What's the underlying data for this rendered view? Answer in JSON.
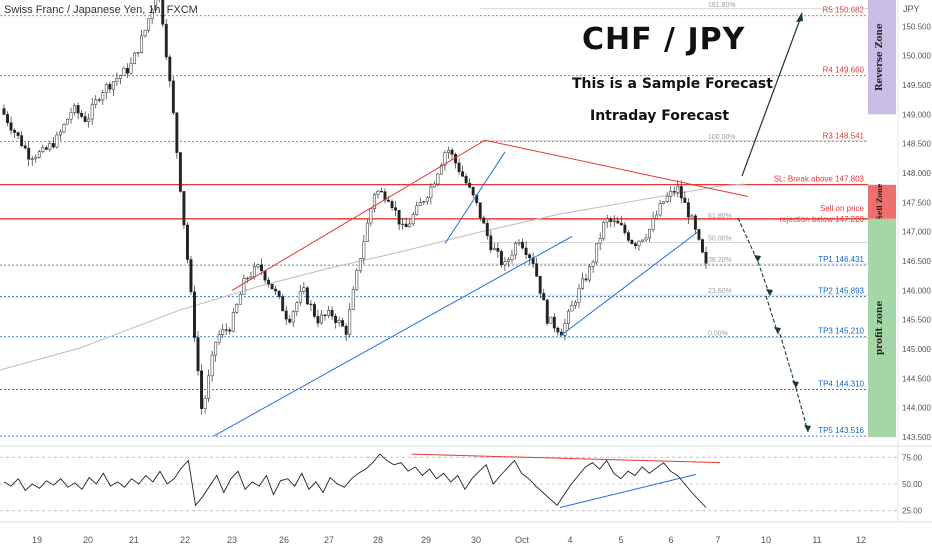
{
  "header": {
    "symbol": "Swiss Franc / Japanese Yen, 1h, FXCM",
    "title": "CHF / JPY",
    "subtitle1": "This is a Sample Forecast",
    "subtitle2": "Intraday Forecast",
    "currency": "JPY"
  },
  "chart_data": {
    "type": "candlestick",
    "symbol": "CHFJPY",
    "timeframe": "1h",
    "ylim": [
      143.45,
      150.95
    ],
    "y_ticks": [
      143.5,
      144.0,
      144.5,
      145.0,
      145.5,
      146.0,
      146.5,
      147.0,
      147.5,
      148.0,
      148.5,
      149.0,
      149.5,
      150.0,
      150.5
    ],
    "x_tick_labels": [
      "19",
      "20",
      "21",
      "22",
      "23",
      "26",
      "27",
      "28",
      "29",
      "30",
      "Oct",
      "4",
      "5",
      "6",
      "7",
      "10",
      "11",
      "12"
    ],
    "price_path": [
      [
        "19",
        149.1
      ],
      [
        "19",
        148.7
      ],
      [
        "19",
        148.3
      ],
      [
        "20",
        148.35
      ],
      [
        "20",
        148.6
      ],
      [
        "21",
        149.1
      ],
      [
        "21",
        148.9
      ],
      [
        "21",
        149.4
      ],
      [
        "22",
        149.6
      ],
      [
        "22",
        149.8
      ],
      [
        "22",
        150.4
      ],
      [
        "22",
        151.2
      ],
      [
        "22",
        149.0
      ],
      [
        "23",
        146.5
      ],
      [
        "23",
        143.9
      ],
      [
        "23",
        145.2
      ],
      [
        "23",
        145.4
      ],
      [
        "26",
        146.2
      ],
      [
        "26",
        146.4
      ],
      [
        "26",
        146.0
      ],
      [
        "27",
        145.5
      ],
      [
        "27",
        146.0
      ],
      [
        "27",
        145.5
      ],
      [
        "28",
        145.6
      ],
      [
        "28",
        145.3
      ],
      [
        "28",
        146.6
      ],
      [
        "29",
        147.7
      ],
      [
        "29",
        147.6
      ],
      [
        "29",
        147.0
      ],
      [
        "30",
        147.4
      ],
      [
        "30",
        147.8
      ],
      [
        "30",
        148.45
      ],
      [
        "30",
        148.0
      ],
      [
        "30",
        147.5
      ],
      [
        "Oct",
        146.8
      ],
      [
        "Oct",
        146.4
      ],
      [
        "Oct",
        146.9
      ],
      [
        "Oct",
        146.5
      ],
      [
        "4",
        145.5
      ],
      [
        "4",
        145.3
      ],
      [
        "4",
        145.9
      ],
      [
        "4",
        146.4
      ],
      [
        "5",
        147.2
      ],
      [
        "5",
        147.1
      ],
      [
        "5",
        146.8
      ],
      [
        "6",
        147.0
      ],
      [
        "6",
        147.5
      ],
      [
        "6",
        147.75
      ],
      [
        "6",
        147.2
      ],
      [
        "6",
        146.4
      ]
    ],
    "levels": [
      {
        "name": "R5",
        "label": "R5 150.682",
        "price": 150.682,
        "color": "#e53935",
        "style": "dotted"
      },
      {
        "name": "R4",
        "label": "R4 149.660",
        "price": 149.66,
        "color": "#e53935",
        "style": "dotted"
      },
      {
        "name": "R3",
        "label": "R3 148.541",
        "price": 148.541,
        "color": "#e53935",
        "style": "dotted"
      },
      {
        "name": "SL",
        "label": "SL: Break above 147.803",
        "price": 147.803,
        "color": "#e53935",
        "style": "solid"
      },
      {
        "name": "Sell",
        "label": "Sell on price rejection below 147.220",
        "price": 147.22,
        "color": "#e53935",
        "style": "solid"
      },
      {
        "name": "TP1",
        "label": "TP1 146.431",
        "price": 146.431,
        "color": "#1565c0",
        "style": "dotted"
      },
      {
        "name": "TP2",
        "label": "TP2 145.893",
        "price": 145.893,
        "color": "#1565c0",
        "style": "dotted"
      },
      {
        "name": "TP3",
        "label": "TP3 145.210",
        "price": 145.21,
        "color": "#1565c0",
        "style": "dotted"
      },
      {
        "name": "TP4",
        "label": "TP4 144.310",
        "price": 144.31,
        "color": "#1565c0",
        "style": "dotted"
      },
      {
        "name": "TP5",
        "label": "TP5 143.516",
        "price": 143.516,
        "color": "#1565c0",
        "style": "dotted"
      }
    ],
    "fibonacci": [
      {
        "label": "161.80%",
        "price": 150.8
      },
      {
        "label": "100.00%",
        "price": 148.55
      },
      {
        "label": "61.80%",
        "price": 147.2
      },
      {
        "label": "50.00%",
        "price": 146.82
      },
      {
        "label": "38.20%",
        "price": 146.45
      },
      {
        "label": "23.60%",
        "price": 145.92
      },
      {
        "label": "0.00%",
        "price": 145.2
      }
    ],
    "zones": [
      {
        "label": "Reverse Zone",
        "from": 149.0,
        "to": 150.95,
        "color": "#c9bfe6"
      },
      {
        "label": "Sell Zone",
        "from": 147.22,
        "to": 147.8,
        "color": "#ef6f6c"
      },
      {
        "label": "profit zone",
        "from": 143.5,
        "to": 147.22,
        "color": "#a5d6a7"
      }
    ],
    "oscillator": {
      "ticks": [
        25.0,
        50.0,
        75.0
      ],
      "ylim": [
        20,
        80
      ],
      "values": [
        52,
        48,
        55,
        44,
        50,
        46,
        53,
        49,
        55,
        47,
        51,
        45,
        56,
        50,
        60,
        48,
        52,
        47,
        55,
        50,
        58,
        52,
        62,
        50,
        55,
        65,
        72,
        30,
        38,
        48,
        58,
        42,
        55,
        62,
        45,
        52,
        48,
        58,
        40,
        53,
        55,
        48,
        60,
        45,
        52,
        42,
        56,
        50,
        47,
        55,
        60,
        64,
        70,
        78,
        72,
        68,
        70,
        62,
        66,
        58,
        64,
        55,
        60,
        52,
        58,
        45,
        55,
        62,
        68,
        50,
        58,
        65,
        72,
        60,
        55,
        48,
        42,
        36,
        30,
        40,
        50,
        58,
        66,
        70,
        64,
        72,
        60,
        55,
        62,
        58,
        66,
        60,
        65,
        70,
        62,
        58,
        50,
        42,
        35,
        28
      ]
    }
  }
}
